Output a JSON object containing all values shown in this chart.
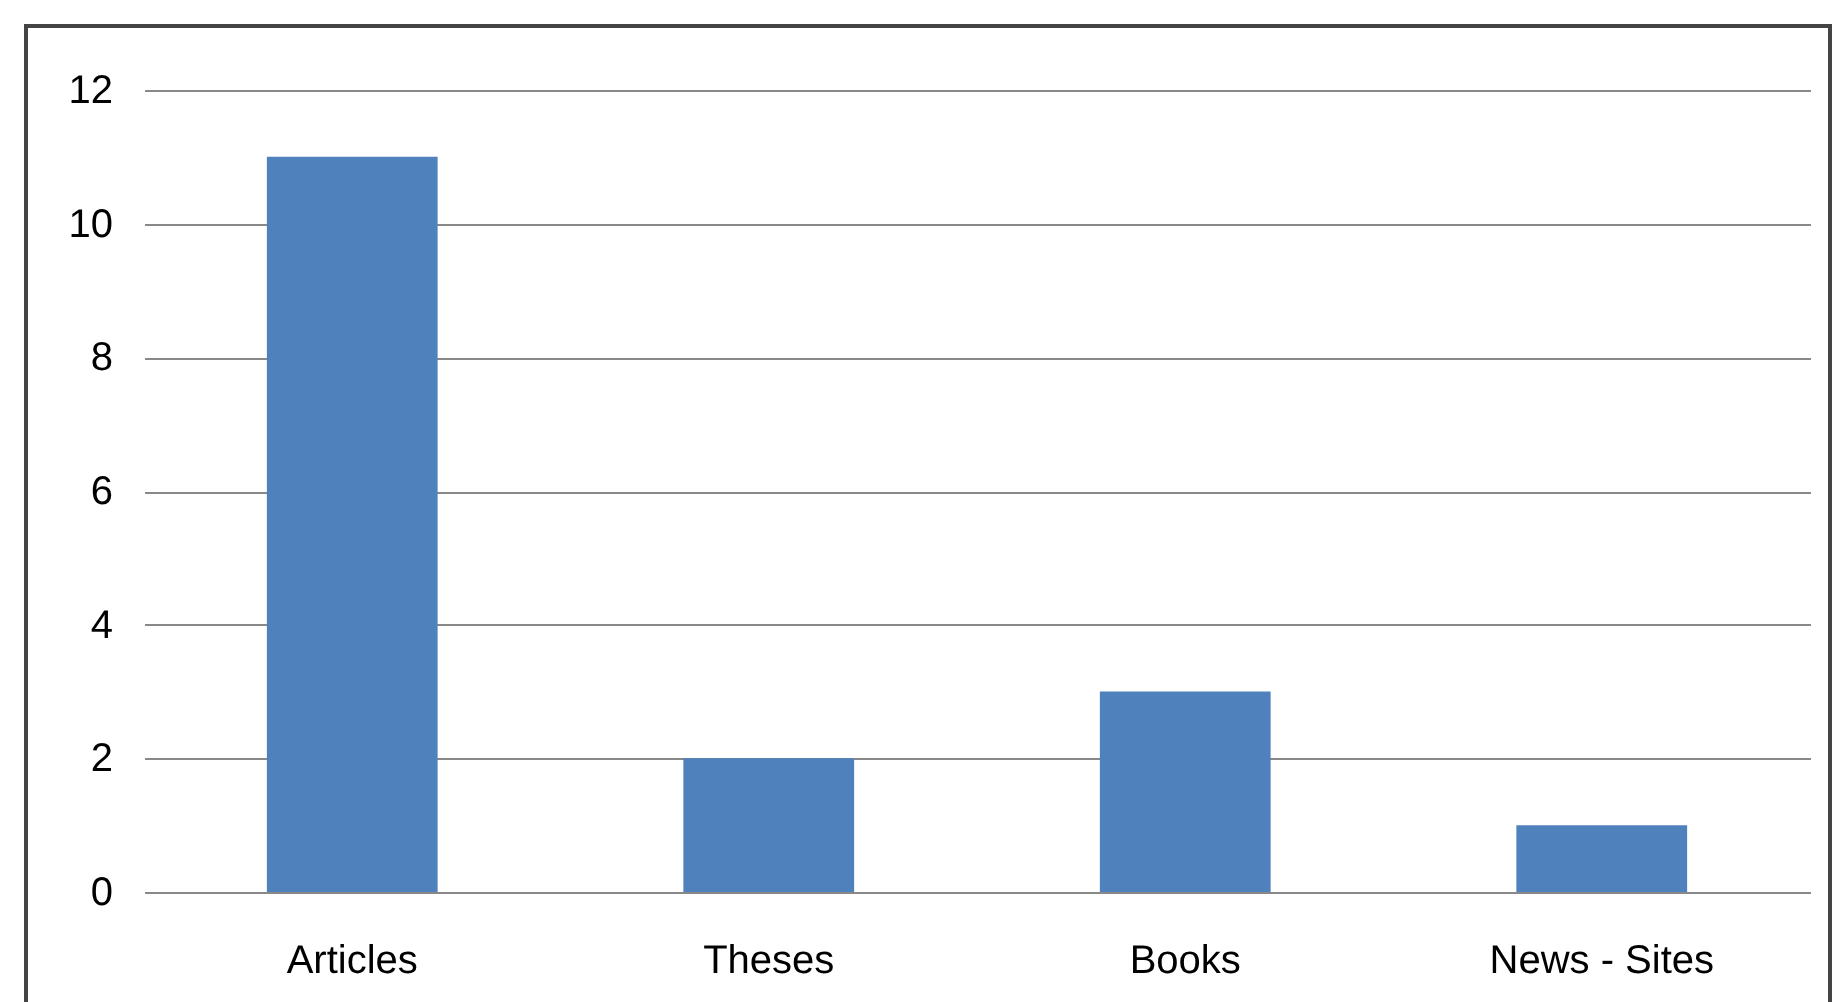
{
  "chart_data": {
    "type": "bar",
    "categories": [
      "Articles",
      "Theses",
      "Books",
      "News - Sites"
    ],
    "values": [
      11,
      2,
      3,
      1
    ],
    "color": "#4f81bd",
    "ylim": [
      0,
      12
    ],
    "yticks": [
      0,
      2,
      4,
      6,
      8,
      10,
      12
    ],
    "grid": "y"
  }
}
